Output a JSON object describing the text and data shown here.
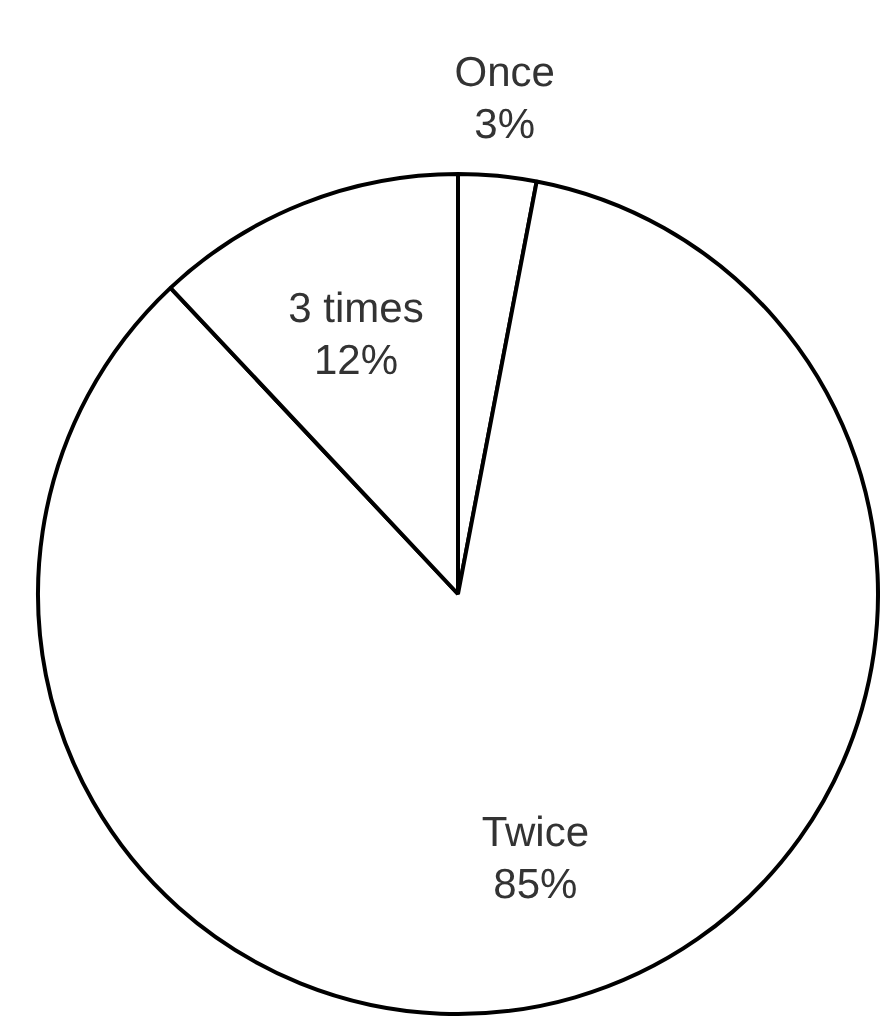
{
  "chart_data": {
    "type": "pie",
    "categories": [
      "Once",
      "Twice",
      "3 times"
    ],
    "values": [
      3,
      85,
      12
    ],
    "value_labels": [
      "3%",
      "85%",
      "12%"
    ],
    "colors": [
      "#ffffff",
      "#ffffff",
      "#ffffff"
    ],
    "legend": false
  }
}
